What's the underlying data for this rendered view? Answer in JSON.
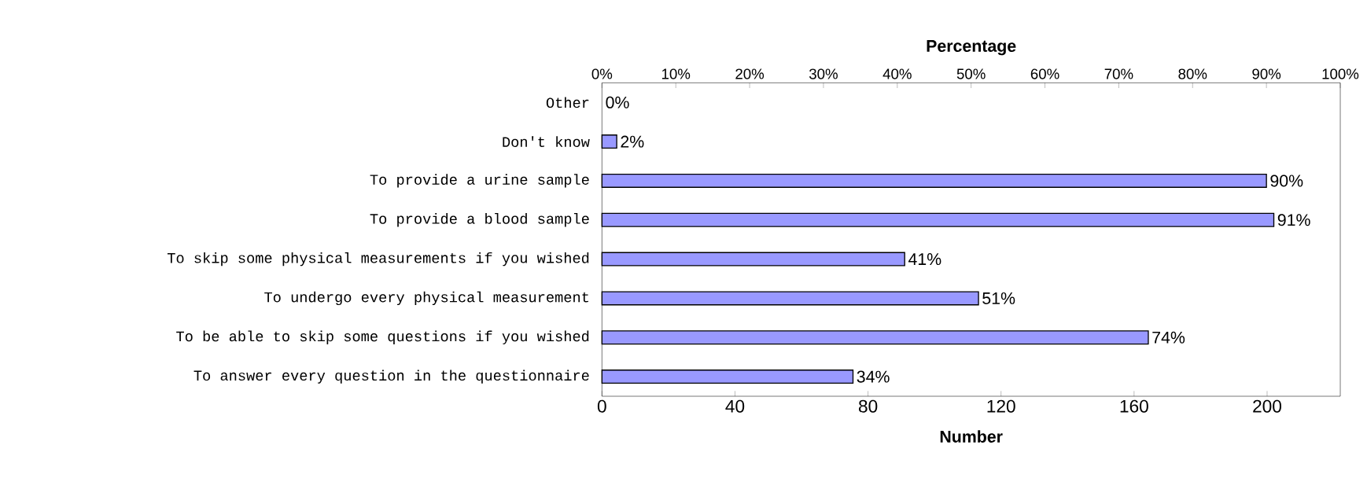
{
  "chart_data": {
    "type": "bar",
    "orientation": "horizontal",
    "categories": [
      "Other",
      "Don't know",
      "To provide a urine sample",
      "To provide a blood sample",
      "To skip some physical measurements if you wished",
      "To undergo every physical measurement",
      "To be able to skip some questions if you wished",
      "To answer every question in the questionnaire"
    ],
    "series": [
      {
        "values": [
          0,
          2,
          90,
          91,
          41,
          51,
          74,
          34
        ],
        "axis": "x2",
        "value_labels": [
          "0%",
          "2%",
          "90%",
          "91%",
          "41%",
          "51%",
          "74%",
          "34%"
        ],
        "color": "#9999ff"
      }
    ],
    "xlabel": "Number",
    "x2label": "Percentage",
    "xlim": [
      0,
      222
    ],
    "xticks": [
      0,
      40,
      80,
      120,
      160,
      200
    ],
    "x2lim": [
      0,
      100
    ],
    "x2ticks": [
      {
        "value": 0,
        "label": "0%"
      },
      {
        "value": 10,
        "label": "10%"
      },
      {
        "value": 20,
        "label": "20%"
      },
      {
        "value": 30,
        "label": "30%"
      },
      {
        "value": 40,
        "label": "40%"
      },
      {
        "value": 50,
        "label": "50%"
      },
      {
        "value": 60,
        "label": "60%"
      },
      {
        "value": 70,
        "label": "70%"
      },
      {
        "value": 80,
        "label": "80%"
      },
      {
        "value": 90,
        "label": "90%"
      },
      {
        "value": 100,
        "label": "100%"
      }
    ]
  }
}
